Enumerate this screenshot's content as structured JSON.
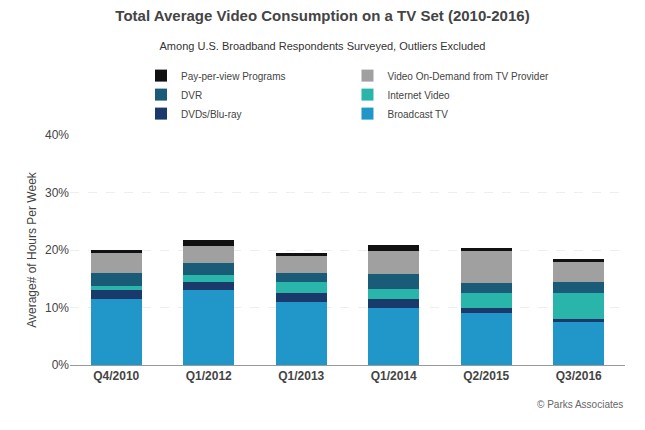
{
  "chart_data": {
    "type": "bar",
    "stacked": true,
    "title": "Total Average Video Consumption on a TV Set (2010-2016)",
    "subtitle": "Among U.S. Broadband Respondents Surveyed, Outliers Excluded",
    "ylabel": "Average# of Hours Per Week",
    "annotations": [
      "© Parks Associates"
    ],
    "categories": [
      "Q4/2010",
      "Q1/2012",
      "Q1/2013",
      "Q1/2014",
      "Q2/2015",
      "Q3/2016"
    ],
    "series": [
      {
        "name": "Broadcast TV",
        "color": "#2196c8",
        "values": [
          11.5,
          13.0,
          11.0,
          10.0,
          9.0,
          7.5
        ]
      },
      {
        "name": "DVDs/Blu-ray",
        "color": "#1a3a6b",
        "values": [
          1.5,
          1.5,
          1.5,
          1.5,
          1.0,
          0.5
        ]
      },
      {
        "name": "Internet Video",
        "color": "#29b5aa",
        "values": [
          0.8,
          1.2,
          2.0,
          1.8,
          2.5,
          4.5
        ]
      },
      {
        "name": "DVR",
        "color": "#1a5c78",
        "values": [
          2.2,
          2.0,
          1.5,
          2.5,
          1.8,
          2.0
        ]
      },
      {
        "name": "Video On-Demand from TV Provider",
        "color": "#a0a0a0",
        "values": [
          3.5,
          3.0,
          3.0,
          4.0,
          5.5,
          3.5
        ]
      },
      {
        "name": "Pay-per-view Programs",
        "color": "#111111",
        "values": [
          0.5,
          1.0,
          0.5,
          1.0,
          0.5,
          0.5
        ]
      }
    ],
    "ylim": [
      0,
      40
    ],
    "yticks": [
      {
        "value": 0,
        "label": "0%"
      },
      {
        "value": 10,
        "label": "10%"
      },
      {
        "value": 20,
        "label": "20%"
      },
      {
        "value": 30,
        "label": "30%"
      },
      {
        "value": 40,
        "label": "40%"
      }
    ],
    "grid": true,
    "legend": "upper center"
  }
}
